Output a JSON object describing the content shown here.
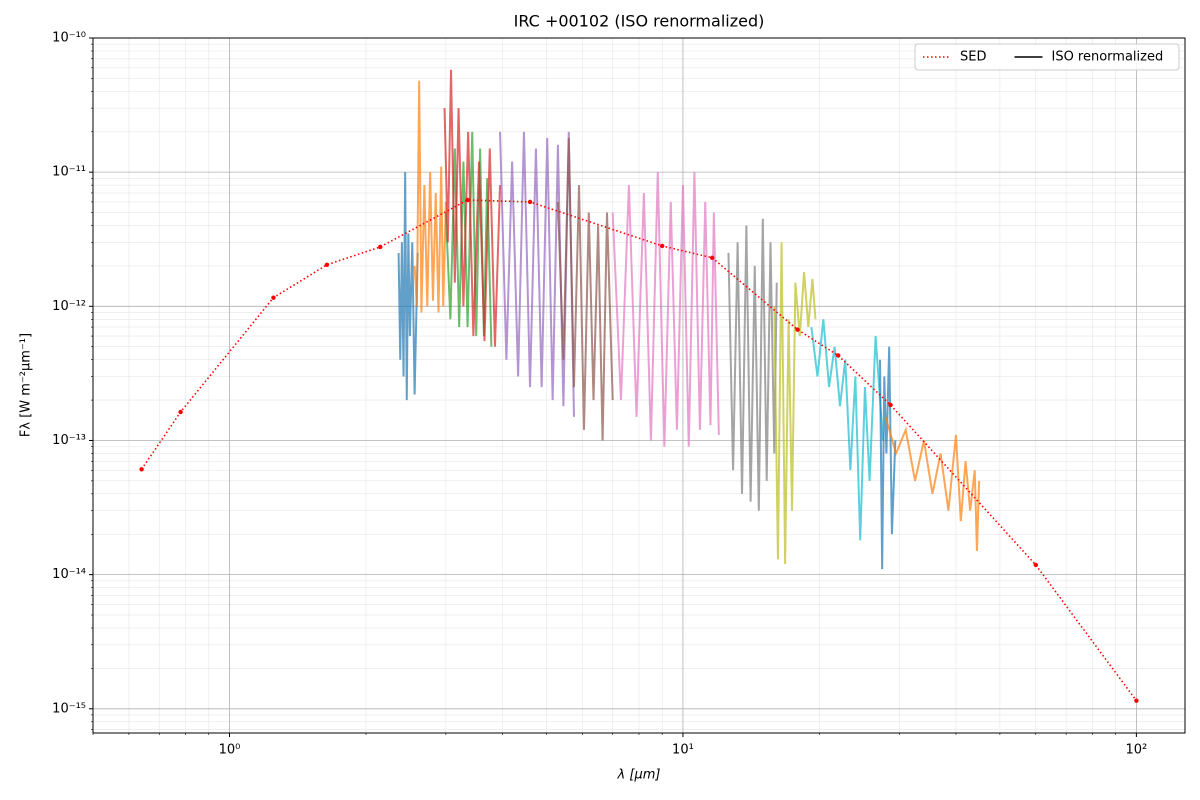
{
  "chart_data": {
    "type": "line",
    "title": "IRC +00102 (ISO renormalized)",
    "x_label": "λ [μm]",
    "y_label": "Fλ [W m⁻²μm⁻¹]",
    "log_x": true,
    "log_y": true,
    "grid": true,
    "minor_grid": true,
    "legend_position": "upper right",
    "xlim": [
      0.5,
      128
    ],
    "ylim": [
      6.6e-16,
      1e-10
    ],
    "xticks": [
      {
        "value": 1,
        "label": "10⁰"
      },
      {
        "value": 10,
        "label": "10¹"
      },
      {
        "value": 100,
        "label": "10²"
      }
    ],
    "yticks": [
      {
        "value": 1e-15,
        "label": "10⁻¹⁵"
      },
      {
        "value": 1e-14,
        "label": "10⁻¹⁴"
      },
      {
        "value": 1e-13,
        "label": "10⁻¹³"
      },
      {
        "value": 1e-12,
        "label": "10⁻¹²"
      },
      {
        "value": 1e-11,
        "label": "10⁻¹¹"
      },
      {
        "value": 1e-10,
        "label": "10⁻¹⁰"
      }
    ],
    "series": [
      {
        "name": "SED",
        "color": "#ff0000",
        "style": "dotted",
        "x": [
          0.64,
          0.78,
          1.25,
          1.64,
          2.15,
          3.35,
          4.6,
          9.0,
          11.6,
          17.9,
          22,
          28.7,
          60,
          100
        ],
        "values": [
          6.1e-14,
          1.63e-13,
          1.16e-12,
          2.04e-12,
          2.77e-12,
          6.2e-12,
          6e-12,
          2.82e-12,
          2.3e-12,
          6.7e-13,
          4.3e-13,
          1.84e-13,
          1.18e-14,
          1.15e-15
        ]
      },
      {
        "name": "ISO renormalized",
        "color": "#000000",
        "style": "solid",
        "segments": [
          {
            "color": "#1f77b4",
            "x": [
              2.36,
              2.38,
              2.4,
              2.42,
              2.44,
              2.46,
              2.48,
              2.5,
              2.53,
              2.56,
              2.6
            ],
            "values": [
              2.5e-12,
              4e-13,
              3e-12,
              3e-13,
              1e-11,
              2e-13,
              3.5e-12,
              6e-13,
              3e-12,
              2.2e-13,
              2.5e-12
            ]
          },
          {
            "color": "#ff7f0e",
            "x": [
              2.56,
              2.59,
              2.62,
              2.65,
              2.69,
              2.73,
              2.77,
              2.81,
              2.85,
              2.89,
              2.93,
              2.96,
              3.0
            ],
            "values": [
              2e-12,
              1e-12,
              4.8e-11,
              9e-13,
              8e-12,
              1e-12,
              1e-11,
              1.1e-12,
              7e-12,
              9e-13,
              1.1e-11,
              1e-12,
              6e-12
            ]
          },
          {
            "color": "#2ca02c",
            "x": [
              3.0,
              3.07,
              3.14,
              3.21,
              3.28,
              3.35,
              3.43,
              3.5,
              3.57,
              3.64,
              3.7,
              3.78
            ],
            "values": [
              5e-12,
              8e-13,
              1.5e-11,
              7e-13,
              1.2e-11,
              7e-13,
              2e-11,
              6e-13,
              1.5e-11,
              6e-13,
              9e-12,
              5e-13
            ]
          },
          {
            "color": "#d62728",
            "x": [
              2.98,
              3.03,
              3.08,
              3.14,
              3.2,
              3.28,
              3.36,
              3.45,
              3.55,
              3.65,
              3.75,
              3.85,
              3.95
            ],
            "values": [
              3e-11,
              3e-12,
              5.8e-11,
              1.5e-12,
              3e-11,
              1e-12,
              2e-11,
              6e-13,
              1.2e-11,
              5.5e-13,
              1.5e-11,
              5e-13,
              8e-12
            ]
          },
          {
            "color": "#9467bd",
            "x": [
              3.95,
              4.08,
              4.2,
              4.33,
              4.46,
              4.6,
              4.74,
              4.88,
              5.02,
              5.16,
              5.3,
              5.45,
              5.6,
              5.75
            ],
            "values": [
              2e-11,
              4e-13,
              1.2e-11,
              3e-13,
              2e-11,
              2.5e-13,
              1.5e-11,
              2.5e-13,
              1.8e-11,
              2e-13,
              1.6e-11,
              1.8e-13,
              2e-11,
              1.5e-13
            ]
          },
          {
            "color": "#8c564b",
            "x": [
              5.3,
              5.45,
              5.6,
              5.75,
              5.9,
              6.05,
              6.2,
              6.35,
              6.5,
              6.65,
              6.8,
              7.0
            ],
            "values": [
              6e-12,
              4e-13,
              1.8e-11,
              2.5e-13,
              8e-12,
              1.2e-13,
              5e-12,
              2e-13,
              4e-12,
              1e-13,
              5e-12,
              2e-13
            ]
          },
          {
            "color": "#e377c2",
            "x": [
              7.0,
              7.3,
              7.6,
              7.9,
              8.2,
              8.5,
              8.8,
              9.1,
              9.4,
              9.7,
              10.0,
              10.3,
              10.6,
              10.9,
              11.2,
              11.5,
              11.7,
              12.0
            ],
            "values": [
              5e-12,
              2e-13,
              8e-12,
              1.5e-13,
              7e-12,
              1e-13,
              1e-11,
              9e-14,
              6e-12,
              1.2e-13,
              8e-12,
              9e-14,
              1e-11,
              1.2e-13,
              6e-12,
              1.3e-13,
              5e-12,
              1.1e-13
            ]
          },
          {
            "color": "#7f7f7f",
            "x": [
              12.6,
              12.9,
              13.2,
              13.5,
              13.8,
              14.1,
              14.4,
              14.7,
              15.0,
              15.3,
              15.6,
              15.9,
              16.1
            ],
            "values": [
              2.5e-12,
              6e-14,
              3e-12,
              4e-14,
              4e-12,
              3.5e-14,
              2e-12,
              3e-14,
              4.5e-12,
              5e-14,
              3e-12,
              8e-14,
              1.5e-12
            ]
          },
          {
            "color": "#bcbd22",
            "x": [
              15.9,
              16.2,
              16.5,
              16.8,
              17.1,
              17.4,
              17.7,
              18.1,
              18.5,
              18.9,
              19.3,
              19.6
            ],
            "values": [
              1e-12,
              1.3e-14,
              3e-12,
              1.2e-14,
              8e-13,
              3e-14,
              1.5e-12,
              6e-13,
              1.8e-12,
              7e-13,
              1.6e-12,
              8e-13
            ]
          },
          {
            "color": "#17becf",
            "x": [
              19.2,
              19.8,
              20.4,
              21.0,
              21.6,
              22.2,
              22.8,
              23.4,
              24.0,
              24.6,
              25.2,
              25.8,
              26.6,
              27.6
            ],
            "values": [
              7e-13,
              3e-13,
              8e-13,
              2.5e-13,
              5e-13,
              1.8e-13,
              4e-13,
              6e-14,
              3e-13,
              1.8e-14,
              2.5e-13,
              5e-14,
              6e-13,
              1e-13
            ]
          },
          {
            "color": "#1f77b4",
            "x": [
              27.2,
              27.5,
              27.8,
              28.1,
              28.5,
              28.9,
              29.4
            ],
            "values": [
              4e-13,
              1.1e-14,
              3e-13,
              8e-14,
              5e-13,
              2e-14,
              1e-13
            ]
          },
          {
            "color": "#ff7f0e",
            "x": [
              28,
              29.5,
              31,
              32.5,
              34,
              35.5,
              37,
              38.5,
              40,
              41,
              42,
              43,
              44,
              44.5,
              45
            ],
            "values": [
              1.5e-13,
              8e-14,
              1.2e-13,
              5e-14,
              1e-13,
              4e-14,
              8e-14,
              3e-14,
              1.1e-13,
              2.5e-14,
              7e-14,
              3e-14,
              6e-14,
              1.5e-14,
              5e-14
            ]
          }
        ]
      }
    ]
  }
}
